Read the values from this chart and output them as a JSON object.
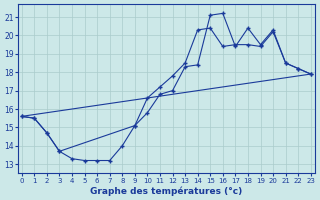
{
  "xlabel": "Graphe des températures (°c)",
  "background_color": "#cce8e8",
  "grid_color": "#aacccc",
  "line_color": "#1a3a9a",
  "xlim": [
    -0.3,
    23.3
  ],
  "ylim": [
    12.5,
    21.7
  ],
  "xticks": [
    0,
    1,
    2,
    3,
    4,
    5,
    6,
    7,
    8,
    9,
    10,
    11,
    12,
    13,
    14,
    15,
    16,
    17,
    18,
    19,
    20,
    21,
    22,
    23
  ],
  "yticks": [
    13,
    14,
    15,
    16,
    17,
    18,
    19,
    20,
    21
  ],
  "line1_x": [
    0,
    1,
    2,
    3,
    4,
    5,
    6,
    7,
    8,
    9,
    10,
    11,
    12,
    13,
    14,
    15,
    16,
    17,
    18,
    19,
    20,
    21,
    22,
    23
  ],
  "line1_y": [
    15.6,
    15.5,
    14.7,
    13.7,
    13.3,
    13.2,
    13.2,
    13.2,
    14.0,
    15.1,
    15.8,
    16.8,
    17.0,
    18.3,
    18.4,
    21.1,
    21.2,
    19.4,
    20.4,
    19.5,
    20.3,
    18.5,
    18.2,
    17.9
  ],
  "line2_x": [
    0,
    1,
    2,
    3,
    9,
    10,
    11,
    12,
    13,
    14,
    15,
    16,
    17,
    18,
    19,
    20,
    21,
    22,
    23
  ],
  "line2_y": [
    15.6,
    15.5,
    14.7,
    13.7,
    15.1,
    16.6,
    17.2,
    17.8,
    18.5,
    20.3,
    20.4,
    19.4,
    19.5,
    19.5,
    19.4,
    20.2,
    18.5,
    18.2,
    17.9
  ],
  "line3_x": [
    0,
    23
  ],
  "line3_y": [
    15.6,
    17.9
  ]
}
